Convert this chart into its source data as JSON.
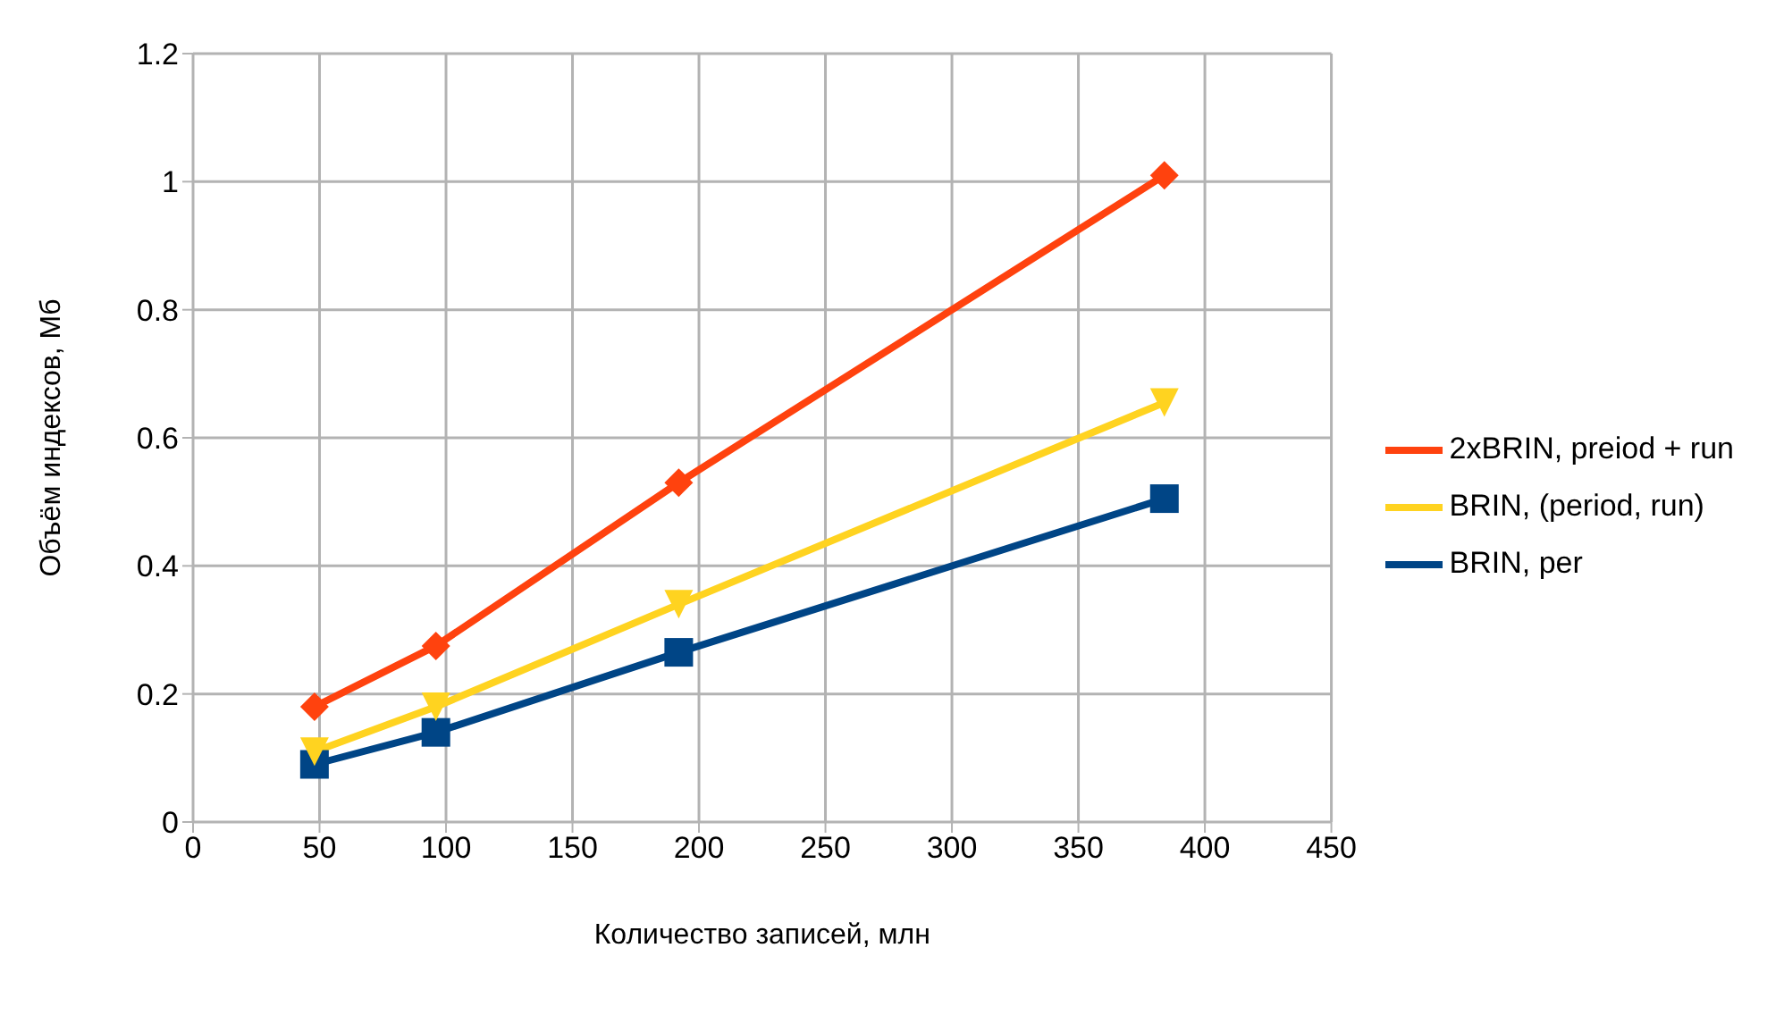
{
  "chart_data": {
    "type": "line",
    "xlabel": "Количество записей, млн",
    "ylabel": "Объём индексов, Мб",
    "x": [
      48,
      96,
      192,
      384
    ],
    "series": [
      {
        "name": "BRIN, per",
        "color": "#004586",
        "marker": "square",
        "values": [
          0.09,
          0.14,
          0.265,
          0.505
        ]
      },
      {
        "name": "2xBRIN, preiod + run",
        "color": "#ff420e",
        "marker": "diamond",
        "values": [
          0.18,
          0.275,
          0.53,
          1.01
        ]
      },
      {
        "name": "BRIN, (period, run)",
        "color": "#ffd320",
        "marker": "triangle",
        "values": [
          0.11,
          0.18,
          0.34,
          0.655
        ]
      }
    ],
    "xlim": [
      0,
      450
    ],
    "xticks": [
      0,
      50,
      100,
      150,
      200,
      250,
      300,
      350,
      400,
      450
    ],
    "ylim": [
      0,
      1.2
    ],
    "yticks": [
      0,
      0.2,
      0.4,
      0.6,
      0.8,
      1,
      1.2
    ],
    "grid": true,
    "legend": "right"
  }
}
